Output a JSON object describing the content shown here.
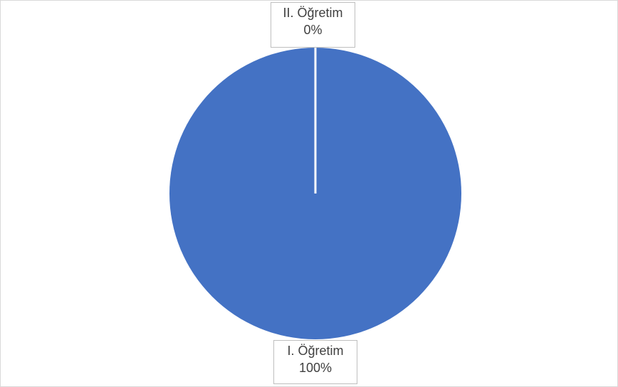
{
  "chart_data": {
    "type": "pie",
    "categories": [
      "I. Öğretim",
      "II. Öğretim"
    ],
    "values": [
      100,
      0
    ],
    "value_labels": [
      "100%",
      "0%"
    ],
    "colors": [
      "#4472c4",
      "#ed7d31"
    ]
  }
}
